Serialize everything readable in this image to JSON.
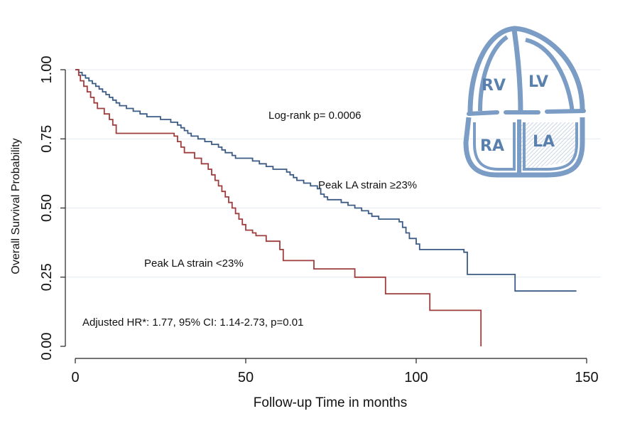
{
  "chart_data": {
    "type": "line",
    "subtype": "kaplan-meier step",
    "xlabel": "Follow-up Time in months",
    "ylabel": "Overall Survival Probability",
    "xlim": [
      0,
      150
    ],
    "ylim": [
      0,
      1
    ],
    "xticks": [
      0,
      50,
      100,
      150
    ],
    "xtick_labels": [
      "0",
      "50",
      "100",
      "150"
    ],
    "yticks": [
      0,
      0.25,
      0.5,
      0.75,
      1.0
    ],
    "ytick_labels": [
      "0.00",
      "0.25",
      "0.50",
      "0.75",
      "1.00"
    ],
    "grid": "horizontal",
    "series": [
      {
        "name": "Peak LA strain ≥23%",
        "color": "#3b5b85",
        "points": [
          [
            0,
            1.0
          ],
          [
            1,
            0.99
          ],
          [
            2,
            0.98
          ],
          [
            3,
            0.97
          ],
          [
            4,
            0.96
          ],
          [
            5,
            0.95
          ],
          [
            6,
            0.94
          ],
          [
            7,
            0.93
          ],
          [
            8,
            0.92
          ],
          [
            9,
            0.91
          ],
          [
            10,
            0.9
          ],
          [
            11,
            0.89
          ],
          [
            12,
            0.88
          ],
          [
            13,
            0.87
          ],
          [
            15,
            0.86
          ],
          [
            17,
            0.85
          ],
          [
            19,
            0.84
          ],
          [
            21,
            0.83
          ],
          [
            25,
            0.82
          ],
          [
            28,
            0.81
          ],
          [
            30,
            0.8
          ],
          [
            31,
            0.79
          ],
          [
            32,
            0.78
          ],
          [
            33,
            0.77
          ],
          [
            34,
            0.76
          ],
          [
            36,
            0.75
          ],
          [
            38,
            0.74
          ],
          [
            40,
            0.73
          ],
          [
            42,
            0.72
          ],
          [
            43,
            0.71
          ],
          [
            44,
            0.7
          ],
          [
            46,
            0.69
          ],
          [
            47,
            0.68
          ],
          [
            52,
            0.67
          ],
          [
            54,
            0.66
          ],
          [
            56,
            0.65
          ],
          [
            58,
            0.64
          ],
          [
            62,
            0.63
          ],
          [
            63,
            0.62
          ],
          [
            64,
            0.61
          ],
          [
            65,
            0.6
          ],
          [
            67,
            0.59
          ],
          [
            69,
            0.58
          ],
          [
            71,
            0.57
          ],
          [
            72,
            0.55
          ],
          [
            73,
            0.54
          ],
          [
            74,
            0.53
          ],
          [
            78,
            0.52
          ],
          [
            80,
            0.51
          ],
          [
            82,
            0.5
          ],
          [
            84,
            0.49
          ],
          [
            86,
            0.48
          ],
          [
            87,
            0.47
          ],
          [
            89,
            0.46
          ],
          [
            95,
            0.45
          ],
          [
            96,
            0.43
          ],
          [
            97,
            0.41
          ],
          [
            98,
            0.39
          ],
          [
            100,
            0.37
          ],
          [
            101,
            0.35
          ],
          [
            114,
            0.34
          ],
          [
            115,
            0.26
          ],
          [
            129,
            0.26
          ],
          [
            129,
            0.2
          ],
          [
            147,
            0.2
          ]
        ]
      },
      {
        "name": "Peak LA strain <23%",
        "color": "#9e3d3d",
        "points": [
          [
            0,
            1.0
          ],
          [
            1,
            0.98
          ],
          [
            1.5,
            0.96
          ],
          [
            2.5,
            0.94
          ],
          [
            3.5,
            0.92
          ],
          [
            4.5,
            0.9
          ],
          [
            5.5,
            0.88
          ],
          [
            6.5,
            0.86
          ],
          [
            8.5,
            0.84
          ],
          [
            10,
            0.82
          ],
          [
            11,
            0.8
          ],
          [
            12,
            0.77
          ],
          [
            29,
            0.76
          ],
          [
            30,
            0.74
          ],
          [
            31,
            0.72
          ],
          [
            32,
            0.7
          ],
          [
            35,
            0.68
          ],
          [
            37,
            0.66
          ],
          [
            39,
            0.64
          ],
          [
            40,
            0.62
          ],
          [
            41,
            0.6
          ],
          [
            42,
            0.58
          ],
          [
            43,
            0.56
          ],
          [
            44,
            0.54
          ],
          [
            45,
            0.52
          ],
          [
            46,
            0.5
          ],
          [
            47,
            0.48
          ],
          [
            48,
            0.46
          ],
          [
            49,
            0.44
          ],
          [
            50,
            0.42
          ],
          [
            52,
            0.41
          ],
          [
            53,
            0.4
          ],
          [
            56,
            0.38
          ],
          [
            60,
            0.35
          ],
          [
            61,
            0.31
          ],
          [
            70,
            0.28
          ],
          [
            82,
            0.25
          ],
          [
            91,
            0.19
          ],
          [
            104,
            0.13
          ],
          [
            119,
            0.0
          ]
        ]
      }
    ],
    "annotations": {
      "logrank": "Log-rank p= 0.0006",
      "label_high": "Peak LA strain ≥23%",
      "label_low": "Peak LA strain <23%",
      "hr": "Adjusted HR*: 1.77, 95% CI: 1.14-2.73, p=0.01"
    },
    "inset": {
      "description_labels": [
        "RV",
        "LV",
        "RA",
        "LA"
      ],
      "color": "#7b9cc4",
      "text_color": "#5a80ad"
    }
  }
}
